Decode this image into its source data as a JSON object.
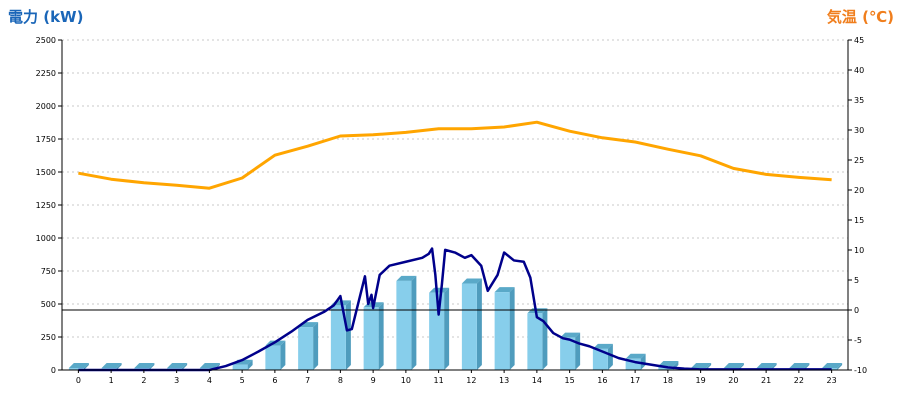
{
  "chart_data": {
    "type": "bar",
    "ylabel_left": "電力 (kW)",
    "ylabel_right": "気温 (℃)",
    "x_categories": [
      "0",
      "1",
      "2",
      "3",
      "4",
      "5",
      "6",
      "7",
      "8",
      "9",
      "10",
      "11",
      "12",
      "13",
      "14",
      "15",
      "16",
      "17",
      "18",
      "19",
      "20",
      "21",
      "22",
      "23"
    ],
    "y_left_range": [
      0,
      2500
    ],
    "y_left_ticks": [
      0,
      250,
      500,
      750,
      1000,
      1250,
      1500,
      1750,
      2000,
      2250,
      2500
    ],
    "y_right_range": [
      -10,
      45
    ],
    "y_right_ticks": [
      -10,
      -5,
      0,
      5,
      10,
      15,
      20,
      25,
      30,
      35,
      40,
      45
    ],
    "grid": true,
    "reference_line_temp": 0,
    "series": [
      {
        "kind": "bar",
        "axis": "left",
        "color": "#87ceeb",
        "values": [
          15,
          15,
          15,
          15,
          15,
          40,
          185,
          325,
          490,
          475,
          675,
          585,
          655,
          590,
          430,
          245,
          160,
          85,
          30,
          15,
          15,
          15,
          15,
          15
        ]
      },
      {
        "kind": "line",
        "axis": "left",
        "color": "#00008b",
        "points": [
          [
            0,
            0
          ],
          [
            1,
            0
          ],
          [
            2,
            0
          ],
          [
            3,
            0
          ],
          [
            4,
            0
          ],
          [
            4.5,
            30
          ],
          [
            5,
            75
          ],
          [
            5.5,
            140
          ],
          [
            6,
            210
          ],
          [
            6.5,
            290
          ],
          [
            7,
            380
          ],
          [
            7.5,
            440
          ],
          [
            7.8,
            490
          ],
          [
            8,
            560
          ],
          [
            8.1,
            430
          ],
          [
            8.2,
            300
          ],
          [
            8.35,
            310
          ],
          [
            8.6,
            560
          ],
          [
            8.75,
            710
          ],
          [
            8.85,
            500
          ],
          [
            8.95,
            570
          ],
          [
            9,
            470
          ],
          [
            9.2,
            720
          ],
          [
            9.5,
            790
          ],
          [
            10,
            820
          ],
          [
            10.5,
            850
          ],
          [
            10.7,
            880
          ],
          [
            10.8,
            920
          ],
          [
            10.9,
            720
          ],
          [
            11,
            420
          ],
          [
            11.1,
            650
          ],
          [
            11.2,
            910
          ],
          [
            11.5,
            890
          ],
          [
            11.8,
            850
          ],
          [
            12,
            870
          ],
          [
            12.3,
            790
          ],
          [
            12.5,
            600
          ],
          [
            12.8,
            720
          ],
          [
            13,
            890
          ],
          [
            13.3,
            830
          ],
          [
            13.6,
            820
          ],
          [
            13.8,
            700
          ],
          [
            14,
            400
          ],
          [
            14.2,
            370
          ],
          [
            14.5,
            280
          ],
          [
            14.8,
            240
          ],
          [
            15,
            230
          ],
          [
            15.3,
            200
          ],
          [
            15.6,
            180
          ],
          [
            16,
            140
          ],
          [
            16.5,
            90
          ],
          [
            17,
            60
          ],
          [
            17.5,
            40
          ],
          [
            18,
            20
          ],
          [
            18.5,
            10
          ],
          [
            19,
            5
          ],
          [
            20,
            5
          ],
          [
            21,
            5
          ],
          [
            22,
            5
          ],
          [
            23,
            5
          ]
        ]
      },
      {
        "kind": "line",
        "axis": "right",
        "color": "#ffa500",
        "values": [
          22.8,
          21.8,
          21.2,
          20.8,
          20.3,
          22.0,
          25.8,
          27.3,
          29.0,
          29.2,
          29.6,
          30.2,
          30.2,
          30.5,
          31.3,
          29.8,
          28.7,
          28.0,
          26.8,
          25.7,
          23.6,
          22.6,
          22.1,
          21.7
        ]
      }
    ]
  }
}
